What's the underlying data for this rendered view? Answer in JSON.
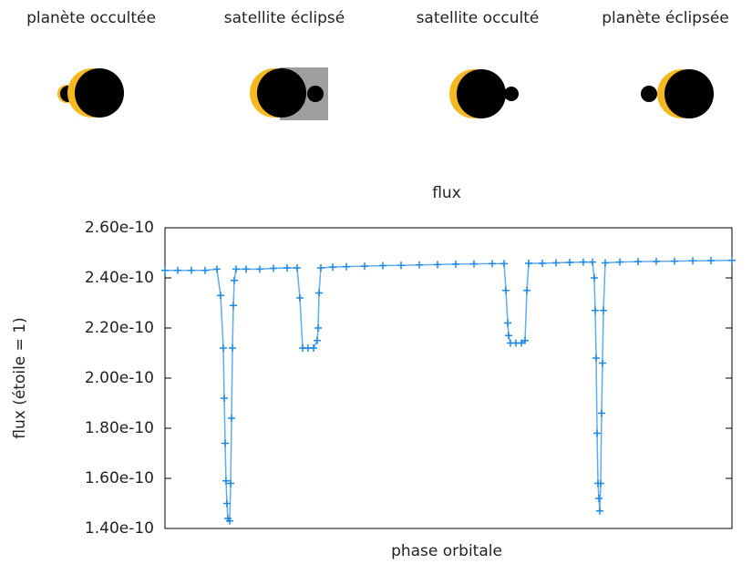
{
  "phases": [
    "planète occultée",
    "satellite éclipsé",
    "satellite occulté",
    "planète éclipsée"
  ],
  "chart_data": {
    "type": "line",
    "title": "flux",
    "x_label": "phase orbitale",
    "y_label": "flux (étoile = 1)",
    "x": [
      0,
      0.0225,
      0.0466,
      0.0707,
      0.0916,
      0.0981,
      0.1029,
      0.1045,
      0.1061,
      0.1077,
      0.1093,
      0.1109,
      0.1141,
      0.1158,
      0.1174,
      0.119,
      0.1206,
      0.1222,
      0.1254,
      0.1431,
      0.1672,
      0.1913,
      0.2154,
      0.2331,
      0.2379,
      0.2428,
      0.2524,
      0.2621,
      0.2685,
      0.2701,
      0.2717,
      0.2749,
      0.2958,
      0.3199,
      0.3521,
      0.3842,
      0.4164,
      0.4486,
      0.4807,
      0.5129,
      0.545,
      0.5772,
      0.5981,
      0.6013,
      0.6045,
      0.6061,
      0.6093,
      0.619,
      0.6286,
      0.635,
      0.6383,
      0.6415,
      0.6656,
      0.6897,
      0.7138,
      0.7379,
      0.754,
      0.7572,
      0.7588,
      0.7605,
      0.7621,
      0.7637,
      0.7653,
      0.7669,
      0.7685,
      0.7701,
      0.7717,
      0.7733,
      0.7765,
      0.8023,
      0.8344,
      0.8666,
      0.8987,
      0.9309,
      0.963,
      1
    ],
    "series": [
      {
        "color": "#1e88e5",
        "values": [
          2.43e-10,
          2.43e-10,
          2.43e-10,
          2.43e-10,
          2.435e-10,
          2.33e-10,
          2.12e-10,
          1.92e-10,
          1.74e-10,
          1.59e-10,
          1.5e-10,
          1.44e-10,
          1.43e-10,
          1.58e-10,
          1.84e-10,
          2.12e-10,
          2.29e-10,
          2.39e-10,
          2.435e-10,
          2.435e-10,
          2.435e-10,
          2.438e-10,
          2.44e-10,
          2.44e-10,
          2.32e-10,
          2.12e-10,
          2.12e-10,
          2.12e-10,
          2.15e-10,
          2.2e-10,
          2.34e-10,
          2.44e-10,
          2.443e-10,
          2.445e-10,
          2.447e-10,
          2.449e-10,
          2.45e-10,
          2.452e-10,
          2.453e-10,
          2.455e-10,
          2.456e-10,
          2.457e-10,
          2.457e-10,
          2.35e-10,
          2.22e-10,
          2.17e-10,
          2.14e-10,
          2.14e-10,
          2.14e-10,
          2.15e-10,
          2.35e-10,
          2.458e-10,
          2.458e-10,
          2.46e-10,
          2.462e-10,
          2.463e-10,
          2.463e-10,
          2.4e-10,
          2.27e-10,
          2.08e-10,
          1.78e-10,
          1.58e-10,
          1.52e-10,
          1.47e-10,
          1.58e-10,
          1.86e-10,
          2.06e-10,
          2.27e-10,
          2.46e-10,
          2.463e-10,
          2.465e-10,
          2.466e-10,
          2.467e-10,
          2.468e-10,
          2.469e-10,
          2.47e-10
        ]
      }
    ],
    "xlim": [
      0,
      1
    ],
    "ylim": [
      1.4e-10,
      2.6e-10
    ],
    "yticks": [
      {
        "value": 1.4e-10,
        "label": "1.40e-10"
      },
      {
        "value": 1.6e-10,
        "label": "1.60e-10"
      },
      {
        "value": 1.8e-10,
        "label": "1.80e-10"
      },
      {
        "value": 2e-10,
        "label": "2.00e-10"
      },
      {
        "value": 2.2e-10,
        "label": "2.20e-10"
      },
      {
        "value": 2.4e-10,
        "label": "2.40e-10"
      },
      {
        "value": 2.6e-10,
        "label": "2.60e-10"
      }
    ]
  }
}
